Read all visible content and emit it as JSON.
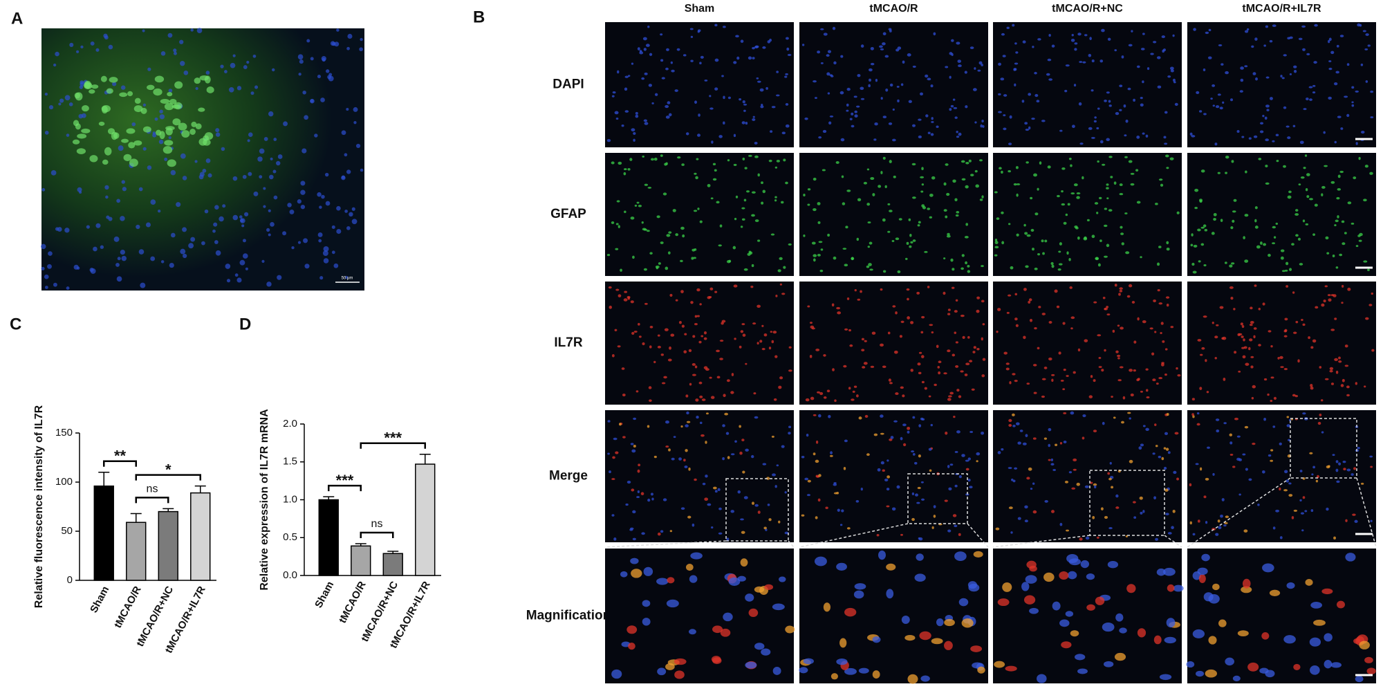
{
  "panel_labels": [
    "A",
    "B",
    "C",
    "D"
  ],
  "panel_a": {
    "scale_bar": "50 μm"
  },
  "panel_b": {
    "columns": [
      "Sham",
      "tMCAO/R",
      "tMCAO/R+NC",
      "tMCAO/R+IL7R"
    ],
    "rows": [
      "DAPI",
      "GFAP",
      "IL7R",
      "Merge",
      "Magnification"
    ]
  },
  "chart_data": [
    {
      "type": "bar",
      "y_label": "Relative fluorescence intensity of IL7R",
      "categories": [
        "Sham",
        "tMCAO/R",
        "tMCAO/R+NC",
        "tMCAO/R+IL7R"
      ],
      "values": [
        96,
        59,
        70,
        89
      ],
      "errors": [
        14,
        9,
        3,
        7
      ],
      "colors": [
        "#000000",
        "#a6a6a6",
        "#7b7b7b",
        "#d4d4d4"
      ],
      "ylim": [
        0,
        150
      ],
      "yticks": [
        0,
        50,
        100,
        150
      ],
      "annotations": [
        {
          "label": "**",
          "from": 0,
          "to": 1
        },
        {
          "label": "*",
          "from": 1,
          "to": 3
        },
        {
          "label": "ns",
          "from": 1,
          "to": 2
        }
      ]
    },
    {
      "type": "bar",
      "y_label": "Relative expression of IL7R mRNA",
      "categories": [
        "Sham",
        "tMCAO/R",
        "tMCAO/R+NC",
        "tMCAO/R+IL7R"
      ],
      "values": [
        1.0,
        0.39,
        0.29,
        1.47
      ],
      "errors": [
        0.04,
        0.03,
        0.03,
        0.13
      ],
      "colors": [
        "#000000",
        "#a6a6a6",
        "#7b7b7b",
        "#d4d4d4"
      ],
      "ylim": [
        0,
        2.0
      ],
      "yticks": [
        {
          "value": 0,
          "label": "0.0"
        },
        0.5,
        {
          "value": 1.0,
          "label": "1.0"
        },
        1.5,
        {
          "value": 2.0,
          "label": "2.0"
        }
      ],
      "annotations": [
        {
          "label": "***",
          "from": 0,
          "to": 1
        },
        {
          "label": "ns",
          "from": 1,
          "to": 2
        },
        {
          "label": "***",
          "from": 1,
          "to": 3
        }
      ]
    }
  ]
}
